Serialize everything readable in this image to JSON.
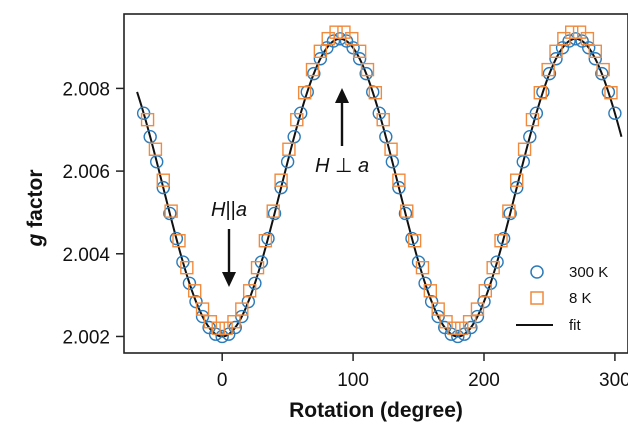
{
  "chart_data": {
    "type": "scatter",
    "xlabel": "Rotation (degree)",
    "ylabel_italic": "g",
    "ylabel_rest": " factor",
    "xlim": [
      -75,
      310
    ],
    "ylim": [
      2.0016,
      2.0098
    ],
    "xticks": [
      0,
      100,
      200,
      300
    ],
    "yticks": [
      2.002,
      2.004,
      2.006,
      2.008
    ],
    "xtick_labels": [
      "0",
      "100",
      "200",
      "300"
    ],
    "ytick_labels": [
      "2.002",
      "2.004",
      "2.006",
      "2.008"
    ],
    "fit": {
      "center": 2.0056,
      "amplitude": 0.0036,
      "x_start": -65,
      "x_end": 305
    },
    "series": [
      {
        "name": "300 K",
        "marker": "circle",
        "color": "#2b7bba",
        "x_start": -60,
        "x_end": 300,
        "x_step": 5,
        "offset": 0.0
      },
      {
        "name": "8 K",
        "marker": "square",
        "color": "#f08a3c",
        "x_start": -57,
        "x_end": 300,
        "x_step": 6,
        "offset": 0.00018
      }
    ],
    "fit_label": "fit",
    "annotations": [
      {
        "text_italic_1": "H",
        "text_mid": "||",
        "text_italic_2": "a"
      },
      {
        "text_italic_1": "H",
        "text_mid": " ⊥ ",
        "text_italic_2": "a"
      }
    ],
    "legend_position": "bottom-right",
    "grid": false
  }
}
